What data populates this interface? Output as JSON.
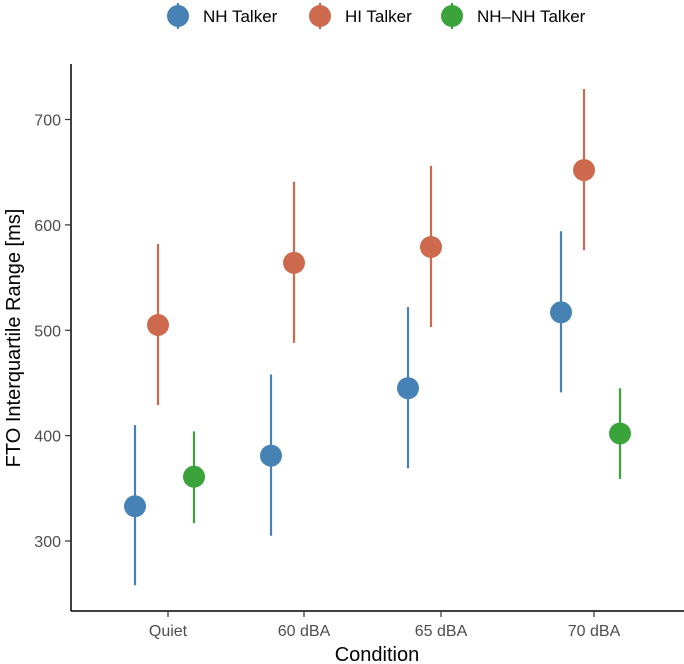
{
  "chart_data": {
    "type": "scatter",
    "title": "",
    "xlabel": "Condition",
    "ylabel": "FTO Interquartile Range [ms]",
    "categories": [
      "Quiet",
      "60 dBA",
      "65 dBA",
      "70 dBA"
    ],
    "ylim": [
      230,
      755
    ],
    "yticks": [
      300,
      400,
      500,
      600,
      700
    ],
    "ytick_labels": [
      "300",
      "400",
      "500",
      "600",
      "700"
    ],
    "legend_position": "top",
    "series": [
      {
        "name": "NH Talker",
        "color": "#4682b4",
        "points": [
          {
            "category": "Quiet",
            "value": 333,
            "low": 258,
            "high": 410
          },
          {
            "category": "60 dBA",
            "value": 381,
            "low": 305,
            "high": 458
          },
          {
            "category": "65 dBA",
            "value": 445,
            "low": 369,
            "high": 522
          },
          {
            "category": "70 dBA",
            "value": 517,
            "low": 441,
            "high": 594
          }
        ]
      },
      {
        "name": "HI Talker",
        "color": "#cd6a4e",
        "points": [
          {
            "category": "Quiet",
            "value": 505,
            "low": 429,
            "high": 582
          },
          {
            "category": "60 dBA",
            "value": 564,
            "low": 488,
            "high": 641
          },
          {
            "category": "65 dBA",
            "value": 579,
            "low": 503,
            "high": 656
          },
          {
            "category": "70 dBA",
            "value": 652,
            "low": 576,
            "high": 729
          }
        ]
      },
      {
        "name": "NH–NH Talker",
        "color": "#3aa33a",
        "points": [
          {
            "category": "Quiet",
            "value": 361,
            "low": 317,
            "high": 404
          },
          {
            "category": "70 dBA",
            "value": 402,
            "low": 359,
            "high": 445
          }
        ]
      }
    ]
  }
}
